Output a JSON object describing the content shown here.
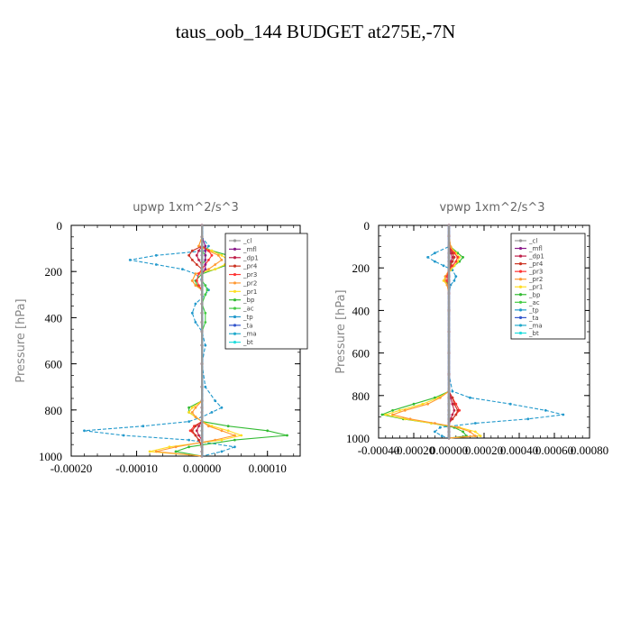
{
  "figure_title": "taus_oob_144  BUDGET at275E,-7N",
  "legend_entries": [
    "_cl",
    "_mfl",
    "_dp1",
    "_pr4",
    "_pr3",
    "_pr2",
    "_pr1",
    "_bp",
    "_ac",
    "_tp",
    "_ta",
    "_ma",
    "_bt"
  ],
  "legend_colors": [
    "#999999",
    "#8a1a8a",
    "#c0204a",
    "#cc3322",
    "#ff3333",
    "#ff9933",
    "#ffdd22",
    "#33bb33",
    "#44cc44",
    "#2299cc",
    "#3355cc",
    "#22aacc",
    "#22dddd"
  ],
  "chart_data": [
    {
      "type": "line",
      "title": "upwp   1xm^2/s^3",
      "ylabel": "Pressure [hPa]",
      "xlim": [
        -0.0002,
        0.00015
      ],
      "ylim": [
        1000,
        0
      ],
      "xticks": [
        -0.0002,
        -0.0001,
        0.0,
        0.0001
      ],
      "xtick_labels": [
        "-0.00020",
        "-0.00010",
        "0.00000",
        "0.00010"
      ],
      "yticks": [
        0,
        200,
        400,
        600,
        800,
        1000
      ],
      "ytick_labels": [
        "0",
        "200",
        "400",
        "600",
        "800",
        "1000"
      ],
      "y": [
        0,
        50,
        90,
        110,
        130,
        150,
        170,
        190,
        210,
        240,
        260,
        280,
        300,
        340,
        380,
        420,
        460,
        520,
        600,
        700,
        760,
        790,
        810,
        830,
        850,
        870,
        890,
        910,
        930,
        960,
        980,
        1000
      ],
      "series": [
        {
          "name": "_cl",
          "values": [
            0,
            0,
            0,
            0,
            0,
            0,
            0,
            0,
            0,
            0,
            0,
            0,
            0,
            0,
            0,
            0,
            0,
            0,
            0,
            0,
            0,
            0,
            0,
            0,
            0,
            0,
            0,
            0,
            0,
            0,
            0,
            0
          ]
        },
        {
          "name": "_mfl",
          "values": [
            0,
            0,
            5e-06,
            5e-06,
            5e-06,
            5e-06,
            5e-06,
            5e-06,
            0,
            0,
            0,
            0,
            0,
            0,
            0,
            0,
            0,
            0,
            0,
            0,
            0,
            0,
            0,
            0,
            0,
            0,
            0,
            0,
            0,
            0,
            0,
            0
          ]
        },
        {
          "name": "_dp1",
          "values": [
            0,
            0,
            0,
            -5e-06,
            -8e-06,
            -5e-06,
            0,
            0,
            0,
            0,
            0,
            0,
            0,
            0,
            0,
            0,
            0,
            0,
            0,
            0,
            0,
            0,
            0,
            0,
            0,
            -5e-06,
            -8e-06,
            -5e-06,
            0,
            0,
            0,
            0
          ]
        },
        {
          "name": "_pr4",
          "values": [
            0,
            0,
            0,
            -1.5e-05,
            -2e-05,
            -1.5e-05,
            -8e-06,
            0,
            0,
            0,
            0,
            0,
            0,
            0,
            0,
            0,
            0,
            0,
            0,
            0,
            0,
            0,
            0,
            0,
            0,
            -1e-05,
            -1.5e-05,
            -1e-05,
            -5e-06,
            0,
            0,
            0
          ]
        },
        {
          "name": "_pr3",
          "values": [
            0,
            0,
            0,
            1e-05,
            1.5e-05,
            1e-05,
            5e-06,
            0,
            -5e-06,
            -8e-06,
            -5e-06,
            0,
            0,
            0,
            0,
            0,
            0,
            0,
            0,
            0,
            0,
            0,
            0,
            0,
            0,
            -1.2e-05,
            -1.8e-05,
            -1e-05,
            -5e-06,
            0,
            0,
            0
          ]
        },
        {
          "name": "_pr2",
          "values": [
            0,
            0,
            -5e-06,
            1e-05,
            2.5e-05,
            3e-05,
            2e-05,
            1e-05,
            -1e-05,
            -1.5e-05,
            -1e-05,
            0,
            0,
            0,
            0,
            0,
            0,
            0,
            0,
            0,
            0,
            -1e-05,
            -1.5e-05,
            -1e-05,
            0,
            1e-05,
            3e-05,
            5e-05,
            2e-05,
            -4e-05,
            -7e-05,
            0
          ]
        },
        {
          "name": "_pr1",
          "values": [
            0,
            0,
            -5e-06,
            1.5e-05,
            3e-05,
            4e-05,
            3.5e-05,
            2e-05,
            -1e-05,
            -1.5e-05,
            -1e-05,
            0,
            0,
            0,
            0,
            0,
            0,
            0,
            0,
            0,
            0,
            -1.5e-05,
            -2e-05,
            -1e-05,
            0,
            1.5e-05,
            4e-05,
            6e-05,
            3e-05,
            -5e-05,
            -8e-05,
            0
          ]
        },
        {
          "name": "_bp",
          "values": [
            0,
            0,
            0,
            1.5e-05,
            4e-05,
            5e-05,
            4e-05,
            2e-05,
            0,
            -1e-05,
            -8e-06,
            0,
            0,
            0,
            0,
            0,
            0,
            0,
            0,
            0,
            0,
            -2e-05,
            -2e-05,
            -1e-05,
            0,
            4e-05,
            0.0001,
            0.00013,
            5e-05,
            -2e-05,
            -4e-05,
            0
          ]
        },
        {
          "name": "_ac",
          "values": [
            0,
            0,
            0,
            0,
            5e-06,
            5e-06,
            0,
            0,
            0,
            0,
            5e-06,
            8e-06,
            5e-06,
            0,
            5e-06,
            5e-06,
            0,
            0,
            0,
            0,
            0,
            0,
            0,
            0,
            0,
            0,
            0,
            0,
            0,
            0,
            0,
            0
          ]
        },
        {
          "name": "_tp",
          "values": [
            0,
            0,
            1e-05,
            5e-06,
            -7e-05,
            -0.00011,
            -7e-05,
            -3e-05,
            -1e-05,
            0,
            5e-06,
            1e-05,
            5e-06,
            -1e-05,
            -1.5e-05,
            -1e-05,
            0,
            5e-06,
            0,
            5e-06,
            2e-05,
            3e-05,
            1.5e-05,
            0,
            -2e-05,
            -9e-05,
            -0.00018,
            -0.00012,
            -2e-05,
            5e-05,
            3e-05,
            0
          ]
        },
        {
          "name": "_ta",
          "values": [
            0,
            0,
            0,
            0,
            0,
            0,
            0,
            0,
            0,
            0,
            0,
            0,
            0,
            0,
            0,
            0,
            0,
            0,
            0,
            0,
            0,
            0,
            0,
            0,
            0,
            0,
            0,
            0,
            0,
            0,
            0,
            0
          ]
        },
        {
          "name": "_ma",
          "values": [
            0,
            0,
            0,
            0,
            0,
            0,
            0,
            0,
            0,
            0,
            0,
            0,
            0,
            0,
            0,
            0,
            0,
            0,
            0,
            0,
            0,
            0,
            0,
            0,
            0,
            0,
            0,
            0,
            0,
            0,
            0,
            0
          ]
        },
        {
          "name": "_bt",
          "values": [
            0,
            0,
            0,
            0,
            0,
            0,
            0,
            0,
            0,
            0,
            0,
            0,
            0,
            0,
            0,
            0,
            0,
            0,
            0,
            0,
            0,
            0,
            0,
            0,
            0,
            0,
            0,
            0,
            0,
            0,
            0,
            0
          ]
        }
      ]
    },
    {
      "type": "line",
      "title": "vpwp   1xm^2/s^3",
      "ylabel": "Pressure [hPa]",
      "xlim": [
        -0.0004,
        0.0008
      ],
      "ylim": [
        1000,
        0
      ],
      "xticks": [
        -0.0004,
        -0.0002,
        0.0,
        0.0002,
        0.0004,
        0.0006,
        0.0008
      ],
      "xtick_labels": [
        "-0.00040",
        "-0.00020",
        "0.00000",
        "0.00020",
        "0.00040",
        "0.00060",
        "0.00080"
      ],
      "yticks": [
        0,
        200,
        400,
        600,
        800,
        1000
      ],
      "ytick_labels": [
        "0",
        "200",
        "400",
        "600",
        "800",
        "1000"
      ],
      "y": [
        0,
        50,
        100,
        130,
        150,
        170,
        190,
        210,
        240,
        260,
        280,
        320,
        400,
        500,
        600,
        700,
        780,
        810,
        840,
        870,
        890,
        910,
        930,
        950,
        970,
        990,
        1000
      ],
      "series": [
        {
          "name": "_cl",
          "values": [
            0,
            0,
            0,
            0,
            0,
            0,
            0,
            0,
            0,
            0,
            0,
            0,
            0,
            0,
            0,
            0,
            0,
            0,
            0,
            0,
            0,
            0,
            0,
            0,
            0,
            0,
            0
          ]
        },
        {
          "name": "_mfl",
          "values": [
            0,
            0,
            0,
            0,
            0,
            0,
            0,
            0,
            0,
            0,
            0,
            0,
            0,
            0,
            0,
            0,
            0,
            0,
            0,
            0,
            0,
            0,
            0,
            0,
            0,
            0,
            0
          ]
        },
        {
          "name": "_dp1",
          "values": [
            0,
            0,
            0,
            1e-05,
            2e-05,
            1e-05,
            0,
            0,
            0,
            0,
            0,
            0,
            0,
            0,
            0,
            0,
            0,
            1e-05,
            2e-05,
            3e-05,
            2e-05,
            1e-05,
            0,
            0,
            0,
            0,
            0
          ]
        },
        {
          "name": "_pr4",
          "values": [
            0,
            0,
            0,
            2e-05,
            3e-05,
            2e-05,
            1e-05,
            0,
            0,
            0,
            0,
            0,
            0,
            0,
            0,
            0,
            0,
            2e-05,
            3e-05,
            5e-05,
            4e-05,
            2e-05,
            0,
            0,
            0,
            0,
            0
          ]
        },
        {
          "name": "_pr3",
          "values": [
            0,
            0,
            0,
            3e-05,
            5e-05,
            4e-05,
            2e-05,
            0,
            -1e-05,
            -1e-05,
            0,
            0,
            0,
            0,
            0,
            0,
            0,
            2e-05,
            4e-05,
            6e-05,
            4e-05,
            2e-05,
            0,
            0,
            0,
            0,
            0
          ]
        },
        {
          "name": "_pr2",
          "values": [
            0,
            0,
            1e-05,
            3e-05,
            5e-05,
            4e-05,
            2e-05,
            0,
            -2e-05,
            -2e-05,
            -1e-05,
            0,
            0,
            0,
            0,
            0,
            0,
            -5e-05,
            -0.00012,
            -0.00025,
            -0.00032,
            -0.00022,
            -8e-05,
            5e-05,
            0.00012,
            0.00015,
            0
          ]
        },
        {
          "name": "_pr1",
          "values": [
            0,
            0,
            1e-05,
            4e-05,
            6e-05,
            5e-05,
            3e-05,
            1e-05,
            -2e-05,
            -3e-05,
            -1e-05,
            0,
            0,
            0,
            0,
            0,
            0,
            -6e-05,
            -0.00015,
            -0.00028,
            -0.00036,
            -0.00025,
            -0.0001,
            6e-05,
            0.00015,
            0.00018,
            0
          ]
        },
        {
          "name": "_bp",
          "values": [
            0,
            0,
            1e-05,
            5e-05,
            8e-05,
            6e-05,
            3e-05,
            1e-05,
            -2e-05,
            -2e-05,
            0,
            0,
            0,
            0,
            0,
            0,
            0,
            -8e-05,
            -0.0002,
            -0.00032,
            -0.00038,
            -0.00026,
            -0.0001,
            3e-05,
            8e-05,
            0.0001,
            0
          ]
        },
        {
          "name": "_ac",
          "values": [
            0,
            0,
            0,
            2e-05,
            3e-05,
            2e-05,
            0,
            0,
            0,
            0,
            0,
            0,
            0,
            0,
            0,
            0,
            0,
            0,
            0,
            0,
            0,
            0,
            0,
            0,
            0,
            0,
            0
          ]
        },
        {
          "name": "_tp",
          "values": [
            0,
            0,
            0,
            -8e-05,
            -0.00012,
            -8e-05,
            -3e-05,
            2e-05,
            4e-05,
            3e-05,
            1e-05,
            0,
            0,
            0,
            0,
            0,
            2e-05,
            0.00012,
            0.00035,
            0.00055,
            0.00065,
            0.00045,
            0.00015,
            -5e-05,
            -8e-05,
            -4e-05,
            0
          ]
        },
        {
          "name": "_ta",
          "values": [
            0,
            0,
            0,
            0,
            0,
            0,
            0,
            0,
            0,
            0,
            0,
            0,
            0,
            0,
            0,
            0,
            0,
            0,
            0,
            0,
            0,
            0,
            0,
            0,
            0,
            0,
            0
          ]
        },
        {
          "name": "_ma",
          "values": [
            0,
            0,
            0,
            0,
            0,
            0,
            0,
            0,
            0,
            0,
            0,
            0,
            0,
            0,
            0,
            0,
            0,
            0,
            0,
            0,
            0,
            0,
            0,
            0,
            0,
            0,
            0
          ]
        },
        {
          "name": "_bt",
          "values": [
            0,
            0,
            0,
            0,
            0,
            0,
            0,
            0,
            0,
            0,
            0,
            0,
            0,
            0,
            0,
            0,
            0,
            0,
            0,
            0,
            0,
            0,
            0,
            0,
            0,
            0,
            0
          ]
        }
      ]
    }
  ]
}
